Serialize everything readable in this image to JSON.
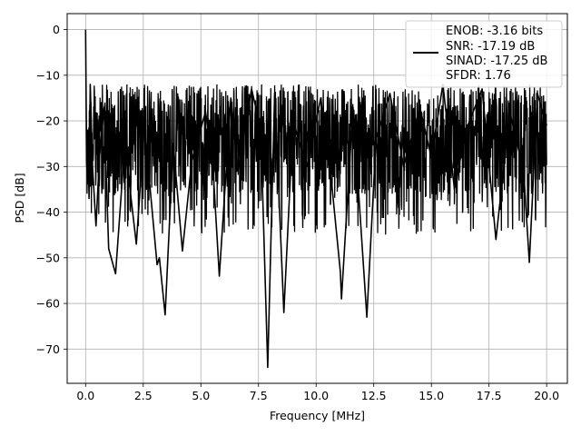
{
  "chart_data": {
    "type": "line",
    "title": "",
    "xlabel": "Frequency [MHz]",
    "ylabel": "PSD [dB]",
    "xlim": [
      -0.8,
      20.9
    ],
    "ylim": [
      -77.5,
      3.5
    ],
    "xticks": [
      0.0,
      2.5,
      5.0,
      7.5,
      10.0,
      12.5,
      15.0,
      17.5,
      20.0
    ],
    "xtick_labels": [
      "0.0",
      "2.5",
      "5.0",
      "7.5",
      "10.0",
      "12.5",
      "15.0",
      "17.5",
      "20.0"
    ],
    "yticks": [
      0,
      -10,
      -20,
      -30,
      -40,
      -50,
      -60,
      -70
    ],
    "ytick_labels": [
      "0",
      "−10",
      "−20",
      "−30",
      "−40",
      "−50",
      "−60",
      "−70"
    ],
    "grid": true,
    "legend_position": "top-right",
    "legend_entries": [
      "ENOB: -3.16 bits",
      "SNR: -17.19 dB",
      "SINAD: -17.25 dB",
      "SFDR: 1.76"
    ],
    "series": [
      {
        "color": "#000000",
        "x": [
          0.0,
          0.02,
          0.05,
          0.1,
          0.15,
          0.2,
          0.3,
          0.45,
          0.6,
          0.8,
          1.0,
          1.3,
          1.7,
          2.2,
          2.55,
          3.1,
          3.2,
          3.45,
          3.8,
          4.2,
          4.6,
          5.2,
          5.5,
          5.8,
          6.3,
          6.6,
          7.2,
          7.6,
          7.9,
          8.2,
          8.6,
          9.0,
          9.6,
          10.2,
          10.7,
          11.05,
          11.1,
          11.6,
          12.2,
          12.6,
          13.2,
          13.8,
          14.5,
          15.0,
          15.5,
          16.0,
          16.5,
          17.2,
          17.8,
          18.4,
          19.0,
          19.25,
          19.6,
          20.0
        ],
        "y": [
          0,
          -14,
          -30,
          -22,
          -37,
          -12,
          -30,
          -43,
          -28,
          -17,
          -48,
          -53.5,
          -25,
          -47,
          -21,
          -51.5,
          -50,
          -62.5,
          -25,
          -48.5,
          -29,
          -18,
          -28,
          -54,
          -15,
          -31,
          -13,
          -22,
          -74,
          -14,
          -62,
          -20,
          -30,
          -15,
          -35,
          -53,
          -59,
          -17,
          -63,
          -24,
          -14,
          -30,
          -17,
          -28,
          -12,
          -35,
          -22,
          -13,
          -46,
          -18,
          -31,
          -51,
          -14,
          -21
        ]
      }
    ]
  }
}
